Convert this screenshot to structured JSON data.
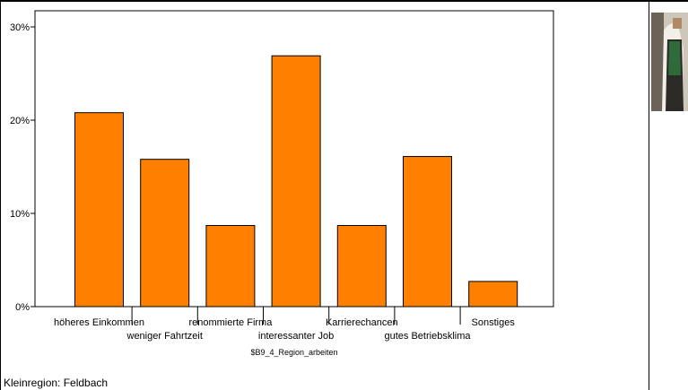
{
  "chart_data": {
    "type": "bar",
    "categories": [
      "höheres Einkommen",
      "weniger Fahrtzeit",
      "renommierte Firma",
      "interessanter Job",
      "Karrierechancen",
      "gutes Betriebsklima",
      "Sonstiges"
    ],
    "values": [
      20.8,
      15.8,
      8.7,
      26.9,
      8.7,
      16.1,
      2.7
    ],
    "xlabel": "$B9_4_Region_arbeiten",
    "ylabel": "",
    "ylim": [
      0,
      30
    ],
    "yticks": [
      "0%",
      "10%",
      "20%",
      "30%"
    ],
    "bar_color": "#ff8000",
    "grid": false
  },
  "footer": {
    "text": "Kleinregion: Feldbach"
  }
}
